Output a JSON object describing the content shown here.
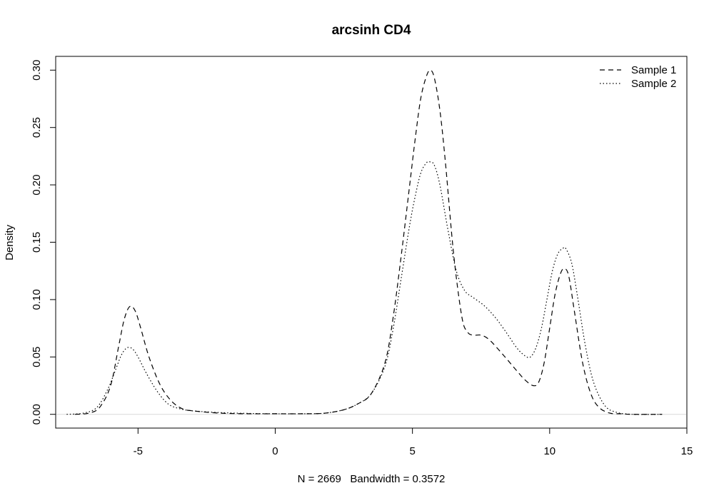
{
  "chart_data": {
    "type": "line",
    "title": "arcsinh CD4",
    "xlabel": "N = 2669   Bandwidth = 0.3572",
    "ylabel": "Density",
    "xlim": [
      -8.0,
      15.0
    ],
    "ylim": [
      -0.012,
      0.312
    ],
    "xticks": [
      -5,
      0,
      5,
      10,
      15
    ],
    "xtick_labels": [
      "-5",
      "0",
      "5",
      "10",
      "15"
    ],
    "yticks": [
      0.0,
      0.05,
      0.1,
      0.15,
      0.2,
      0.25,
      0.3
    ],
    "ytick_labels": [
      "0.00",
      "0.05",
      "0.10",
      "0.15",
      "0.20",
      "0.25",
      "0.30"
    ],
    "grid": false,
    "legend_position": "top-right",
    "legend": [
      {
        "label": "Sample 1",
        "style": "dashed"
      },
      {
        "label": "Sample 2",
        "style": "dotted"
      }
    ],
    "series": [
      {
        "name": "Sample 1",
        "line_style": "dashed",
        "color": "#000000",
        "x": [
          -7.3,
          -6.8,
          -6.4,
          -6.0,
          -5.7,
          -5.5,
          -5.3,
          -5.1,
          -4.9,
          -4.6,
          -4.2,
          -3.8,
          -3.4,
          -3.0,
          -2.0,
          -1.0,
          0.0,
          1.0,
          1.8,
          2.5,
          3.0,
          3.5,
          4.0,
          4.3,
          4.6,
          4.9,
          5.1,
          5.3,
          5.5,
          5.65,
          5.8,
          6.0,
          6.2,
          6.5,
          6.8,
          7.0,
          7.2,
          7.5,
          7.8,
          8.3,
          8.8,
          9.1,
          9.4,
          9.6,
          9.8,
          10.0,
          10.2,
          10.4,
          10.55,
          10.7,
          10.9,
          11.2,
          11.5,
          11.8,
          12.2,
          12.6,
          13.0,
          14.1
        ],
        "y": [
          0.0,
          0.001,
          0.006,
          0.025,
          0.06,
          0.083,
          0.094,
          0.09,
          0.075,
          0.05,
          0.026,
          0.012,
          0.005,
          0.003,
          0.001,
          0.0005,
          0.0005,
          0.0005,
          0.001,
          0.004,
          0.009,
          0.018,
          0.045,
          0.085,
          0.14,
          0.2,
          0.24,
          0.275,
          0.294,
          0.3,
          0.293,
          0.265,
          0.22,
          0.14,
          0.085,
          0.072,
          0.069,
          0.069,
          0.065,
          0.052,
          0.038,
          0.03,
          0.025,
          0.028,
          0.045,
          0.075,
          0.105,
          0.123,
          0.127,
          0.12,
          0.09,
          0.045,
          0.018,
          0.006,
          0.001,
          0.0005,
          0.0,
          0.0
        ]
      },
      {
        "name": "Sample 2",
        "line_style": "dotted",
        "color": "#000000",
        "x": [
          -7.6,
          -7.0,
          -6.5,
          -6.1,
          -5.8,
          -5.6,
          -5.4,
          -5.2,
          -5.0,
          -4.7,
          -4.3,
          -3.9,
          -3.5,
          -3.0,
          -2.0,
          -1.0,
          0.0,
          1.0,
          1.8,
          2.5,
          3.0,
          3.5,
          4.0,
          4.3,
          4.6,
          4.9,
          5.1,
          5.3,
          5.5,
          5.65,
          5.8,
          6.0,
          6.3,
          6.6,
          6.9,
          7.2,
          7.6,
          8.0,
          8.4,
          8.8,
          9.1,
          9.3,
          9.5,
          9.7,
          9.9,
          10.1,
          10.3,
          10.5,
          10.6,
          10.8,
          11.0,
          11.3,
          11.6,
          12.0,
          12.4,
          13.0,
          14.1
        ],
        "y": [
          0.0,
          0.001,
          0.006,
          0.022,
          0.04,
          0.052,
          0.058,
          0.057,
          0.05,
          0.036,
          0.02,
          0.009,
          0.005,
          0.003,
          0.0015,
          0.0008,
          0.0005,
          0.0005,
          0.001,
          0.004,
          0.009,
          0.018,
          0.042,
          0.075,
          0.12,
          0.165,
          0.19,
          0.21,
          0.219,
          0.22,
          0.217,
          0.2,
          0.16,
          0.125,
          0.108,
          0.102,
          0.095,
          0.085,
          0.072,
          0.058,
          0.051,
          0.05,
          0.058,
          0.075,
          0.1,
          0.125,
          0.14,
          0.145,
          0.144,
          0.132,
          0.105,
          0.06,
          0.028,
          0.008,
          0.002,
          0.0,
          0.0
        ]
      }
    ]
  }
}
